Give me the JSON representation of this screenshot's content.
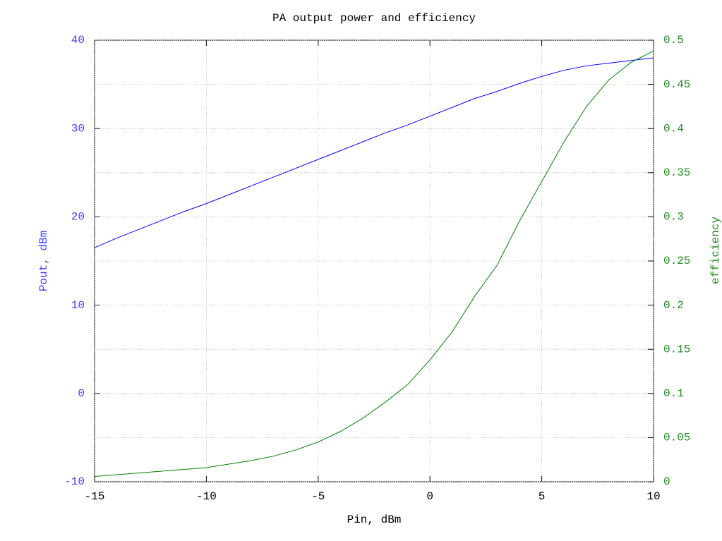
{
  "chart_data": {
    "type": "line",
    "title": "PA output power and efficiency",
    "xlabel": "Pin, dBm",
    "ylabel": "Pout, dBm",
    "y2label": "efficiency",
    "x": [
      -15,
      -14,
      -13,
      -12,
      -11,
      -10,
      -9,
      -8,
      -7,
      -6,
      -5,
      -4,
      -3,
      -2,
      -1,
      0,
      1,
      2,
      3,
      4,
      5,
      6,
      7,
      8,
      9,
      10
    ],
    "series": [
      {
        "color": "#0000ff",
        "axis": "y",
        "values": [
          16.5,
          17.6,
          18.6,
          19.6,
          20.6,
          21.5,
          22.5,
          23.5,
          24.5,
          25.5,
          26.5,
          27.5,
          28.5,
          29.5,
          30.4,
          31.4,
          32.4,
          33.4,
          34.2,
          35.1,
          35.9,
          36.6,
          37.1,
          37.4,
          37.7,
          38.0
        ]
      },
      {
        "color": "#008000",
        "axis": "y2",
        "values": [
          0.006,
          0.008,
          0.01,
          0.012,
          0.014,
          0.016,
          0.02,
          0.024,
          0.029,
          0.036,
          0.045,
          0.057,
          0.072,
          0.09,
          0.11,
          0.138,
          0.17,
          0.21,
          0.245,
          0.295,
          0.34,
          0.385,
          0.425,
          0.455,
          0.475,
          0.488
        ]
      }
    ],
    "xlim": [
      -15,
      10
    ],
    "xticks": [
      -15,
      -10,
      -5,
      0,
      5,
      10
    ],
    "ylim": [
      -10,
      40
    ],
    "yticks": [
      -10,
      0,
      10,
      20,
      30,
      40
    ],
    "ycolor": "#4040ff",
    "y2lim": [
      0,
      0.5
    ],
    "y2ticks": [
      0,
      0.05,
      0.1,
      0.15,
      0.2,
      0.25,
      0.3,
      0.35,
      0.4,
      0.45,
      0.5
    ],
    "y2color": "#228b22",
    "grid": true
  }
}
